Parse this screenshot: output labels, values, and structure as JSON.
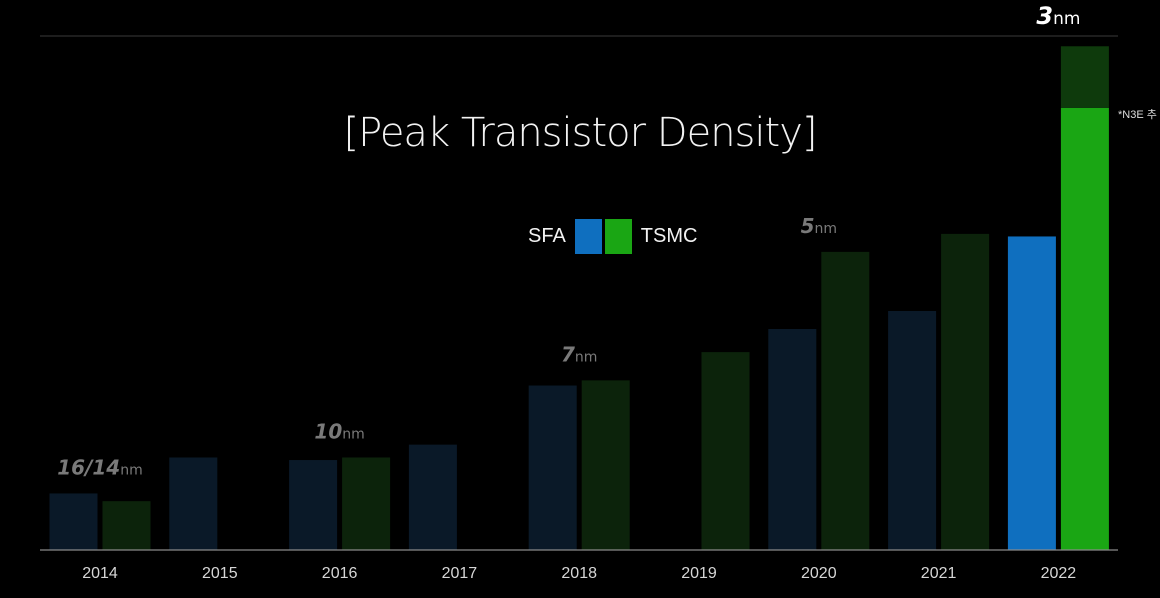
{
  "chart_data": {
    "type": "bar",
    "title": "[Peak Transistor Density]",
    "categories": [
      "2014",
      "2015",
      "2016",
      "2017",
      "2018",
      "2019",
      "2020",
      "2021",
      "2022"
    ],
    "ylim": [
      0,
      100
    ],
    "series": [
      {
        "name": "SFA",
        "color": "#0f6fbf",
        "dim_color": "#0a1928",
        "values": [
          11,
          18,
          17.5,
          20.5,
          32,
          null,
          43,
          46.5,
          61
        ]
      },
      {
        "name": "TSMC",
        "color": "#1aa614",
        "dim_color": "#0c230b",
        "values": [
          9.5,
          null,
          18,
          null,
          33,
          38.5,
          58,
          61.5,
          86
        ]
      }
    ],
    "tsmc_2022_n3e_extension": 12,
    "highlight_category": "2022",
    "node_labels": [
      {
        "num": "16/14",
        "unit": "nm",
        "year": "2014"
      },
      {
        "num": "10",
        "unit": "nm",
        "year": "2016"
      },
      {
        "num": "7",
        "unit": "nm",
        "year": "2018"
      },
      {
        "num": "5",
        "unit": "nm",
        "year": "2020"
      },
      {
        "num": "3",
        "unit": "nm",
        "year": "2022"
      }
    ],
    "note": "*N3E 추",
    "xlabel": "",
    "ylabel": ""
  },
  "legend": {
    "sfa_label": "SFA",
    "tsmc_label": "TSMC"
  }
}
